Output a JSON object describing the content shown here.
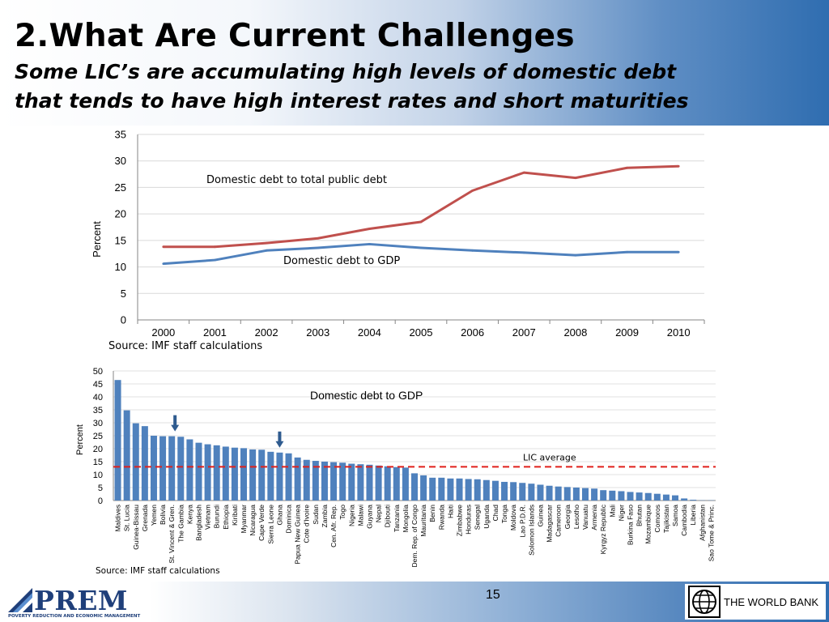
{
  "header": {
    "title": "2.What Are Current Challenges",
    "subtitle_line1": "Some LIC’s are accumulating high levels of domestic debt",
    "subtitle_line2": "that tends to have high interest rates and short maturities"
  },
  "footer": {
    "page_number": "15",
    "prem_logo_text": "PREM",
    "prem_tagline": "POVERTY REDUCTION AND ECONOMIC MANAGEMENT",
    "world_bank_text": "THE WORLD BANK",
    "world_bank_icon": "globe-icon",
    "prem_icon": "prem-triangle-icon"
  },
  "chart_data": [
    {
      "type": "line",
      "title": "",
      "xlabel": "",
      "ylabel": "Percent",
      "x": [
        "2000",
        "2001",
        "2002",
        "2003",
        "2004",
        "2005",
        "2006",
        "2007",
        "2008",
        "2009",
        "2010"
      ],
      "ylim": [
        0,
        35
      ],
      "yticks": [
        0,
        5,
        10,
        15,
        20,
        25,
        30,
        35
      ],
      "grid": true,
      "source": "Source: IMF staff calculations",
      "series": [
        {
          "name": "Domestic debt to total public debt",
          "color": "#c0504d",
          "values": [
            13.8,
            13.8,
            14.5,
            15.4,
            17.2,
            18.5,
            24.4,
            27.8,
            26.8,
            28.7,
            29.0
          ]
        },
        {
          "name": "Domestic debt to GDP",
          "color": "#4f81bd",
          "values": [
            10.6,
            11.3,
            13.1,
            13.6,
            14.3,
            13.6,
            13.1,
            12.7,
            12.2,
            12.8,
            12.8
          ]
        }
      ]
    },
    {
      "type": "bar",
      "title": "Domestic debt to GDP",
      "xlabel": "",
      "ylabel": "Percent",
      "ylim": [
        0,
        50
      ],
      "yticks": [
        0,
        5,
        10,
        15,
        20,
        25,
        30,
        35,
        40,
        45,
        50
      ],
      "grid": true,
      "bar_color": "#4f81bd",
      "source": "Source: IMF staff calculations",
      "reference_line": {
        "label": "LIC average",
        "value": 13,
        "color": "#e0201b"
      },
      "highlighted": [
        "St. Vincent & Gren.",
        "Ghana"
      ],
      "categories": [
        "Maldives",
        "St. Lucia",
        "Guinea-Bissau",
        "Grenada",
        "Yemen",
        "Bolivia",
        "St. Vincent & Gren.",
        "The Gambia",
        "Kenya",
        "Bangladesh",
        "Vietnam",
        "Burundi",
        "Ethiopia",
        "Kiribati",
        "Myanmar",
        "Nicaragua",
        "Cape Verde",
        "Sierra Leone",
        "Ghana",
        "Dominica",
        "Papua New Guinea",
        "Cote d'Ivoire",
        "Sudan",
        "Zambia",
        "Cen. Afr. Rep.",
        "Togo",
        "Nigeria",
        "Malawi",
        "Guyana",
        "Nepal",
        "Djibouti",
        "Tanzania",
        "Mongolia",
        "Dem. Rep. of Congo",
        "Mauritania",
        "Benin",
        "Rwanda",
        "Haiti",
        "Zimbabwe",
        "Honduras",
        "Senegal",
        "Uganda",
        "Chad",
        "Tonga",
        "Moldova",
        "Lao P.D.R.",
        "Solomon Islands",
        "Guinea",
        "Madagascar",
        "Cameroon",
        "Georgia",
        "Lesotho",
        "Vanuatu",
        "Armenia",
        "Kyrgyz Republic",
        "Mali",
        "Niger",
        "Burkina Faso",
        "Bhutan",
        "Mozambique",
        "Comoros",
        "Tajikistan",
        "Samoa",
        "Cambodia",
        "Liberia",
        "Afghanistan",
        "Sao Tome & Princ."
      ],
      "values": [
        46.5,
        34.8,
        29.8,
        28.7,
        25.0,
        24.8,
        24.8,
        24.6,
        23.6,
        22.3,
        21.7,
        21.3,
        20.8,
        20.4,
        20.2,
        19.7,
        19.6,
        18.8,
        18.5,
        18.2,
        16.6,
        15.7,
        15.3,
        15.0,
        14.8,
        14.6,
        14.2,
        14.0,
        13.8,
        13.5,
        13.2,
        12.9,
        12.7,
        10.5,
        9.7,
        8.8,
        8.8,
        8.5,
        8.5,
        8.3,
        8.2,
        7.9,
        7.6,
        7.2,
        7.1,
        6.8,
        6.5,
        6.1,
        5.7,
        5.4,
        5.2,
        5.0,
        4.8,
        4.6,
        4.0,
        3.8,
        3.6,
        3.3,
        3.1,
        2.9,
        2.6,
        2.3,
        2.0,
        0.8,
        0.3,
        0.1,
        0.1
      ]
    }
  ]
}
